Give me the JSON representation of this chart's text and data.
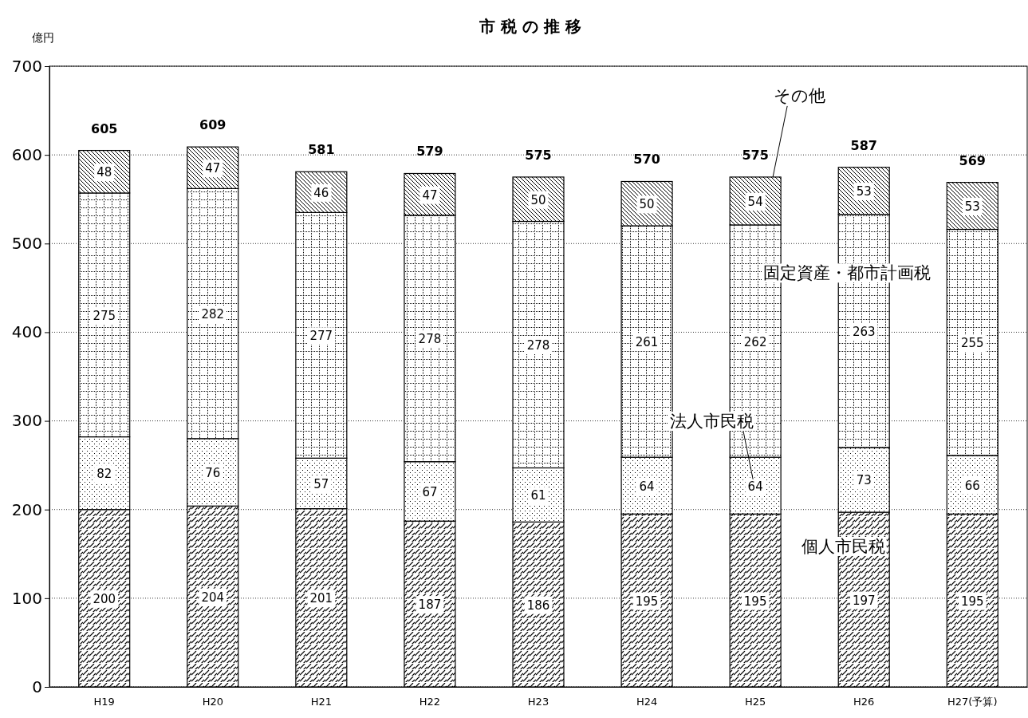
{
  "chart_data": {
    "type": "bar",
    "title": "市 税 の 推 移",
    "ylabel": "億円",
    "categories": [
      "H19",
      "H20",
      "H21",
      "H22",
      "H23",
      "H24",
      "H25",
      "H26",
      "H27(予算)"
    ],
    "stacked": true,
    "grid": "y",
    "data_labels": true,
    "ylim": [
      0,
      700
    ],
    "yticks": [
      0,
      100,
      200,
      300,
      400,
      500,
      600,
      700
    ],
    "series": [
      {
        "name": "個人市民税",
        "color": "#000000",
        "values": [
          200,
          204,
          201,
          187,
          186,
          195,
          195,
          197,
          195
        ]
      },
      {
        "name": "法人市民税",
        "color": "#000000",
        "values": [
          82,
          76,
          57,
          67,
          61,
          64,
          64,
          73,
          66
        ]
      },
      {
        "name": "固定資産・都市計画税",
        "color": "#000000",
        "values": [
          275,
          282,
          277,
          278,
          278,
          261,
          262,
          263,
          255
        ]
      },
      {
        "name": "その他",
        "color": "#000000",
        "values": [
          48,
          47,
          46,
          47,
          50,
          50,
          54,
          53,
          53
        ]
      }
    ],
    "totals": [
      "605",
      "609",
      "581",
      "579",
      "575",
      "570",
      "575",
      "587",
      "569"
    ]
  }
}
